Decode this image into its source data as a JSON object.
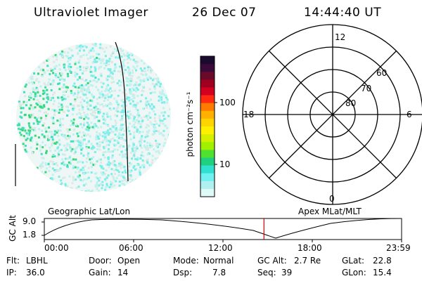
{
  "header": {
    "instrument": "Ultraviolet Imager",
    "date": "26 Dec 07",
    "time": "14:44:40 UT"
  },
  "colorbar": {
    "unit_label": "photon cm⁻²s⁻¹",
    "ticks": [
      "100",
      "10"
    ],
    "colors": [
      "#1a0a2e",
      "#3a0a3a",
      "#6a0a2a",
      "#a00020",
      "#d40020",
      "#ff2a10",
      "#ff7a00",
      "#ffb000",
      "#ffd400",
      "#fff000",
      "#d4f000",
      "#a0f000",
      "#50e030",
      "#20d080",
      "#30e0d0",
      "#70f0f0",
      "#b0f0f0",
      "#dff8f8"
    ]
  },
  "polar": {
    "clock_labels": {
      "top": "12",
      "bottom": "0",
      "left": "18",
      "right": "6"
    },
    "lat_labels": [
      "60",
      "70",
      "80"
    ]
  },
  "timeline": {
    "left_title": "Geographic Lat/Lon",
    "right_title": "Apex MLat/MLT",
    "y_title": "GC Alt",
    "y_ticks": [
      "9.0",
      "1.8"
    ],
    "x_ticks": [
      "00:00",
      "06:00",
      "12:00",
      "18:00",
      "23:59"
    ],
    "marker_time": "14:44:40",
    "marker_color": "#cc0000"
  },
  "info": {
    "flt_label": "Flt:",
    "flt_value": "LBHL",
    "ip_label": "IP:",
    "ip_value": "36.0",
    "door_label": "Door:",
    "door_value": "Open",
    "gain_label": "Gain:",
    "gain_value": "14",
    "mode_label": "Mode:",
    "mode_value": "Normal",
    "dsp_label": "Dsp:",
    "dsp_value": "7.8",
    "gcalt_label": "GC Alt:",
    "gcalt_value": "2.7 Re",
    "seq_label": "Seq:",
    "seq_value": "39",
    "glat_label": "GLat:",
    "glat_value": "22.8",
    "glon_label": "GLon:",
    "glon_value": "15.4"
  }
}
